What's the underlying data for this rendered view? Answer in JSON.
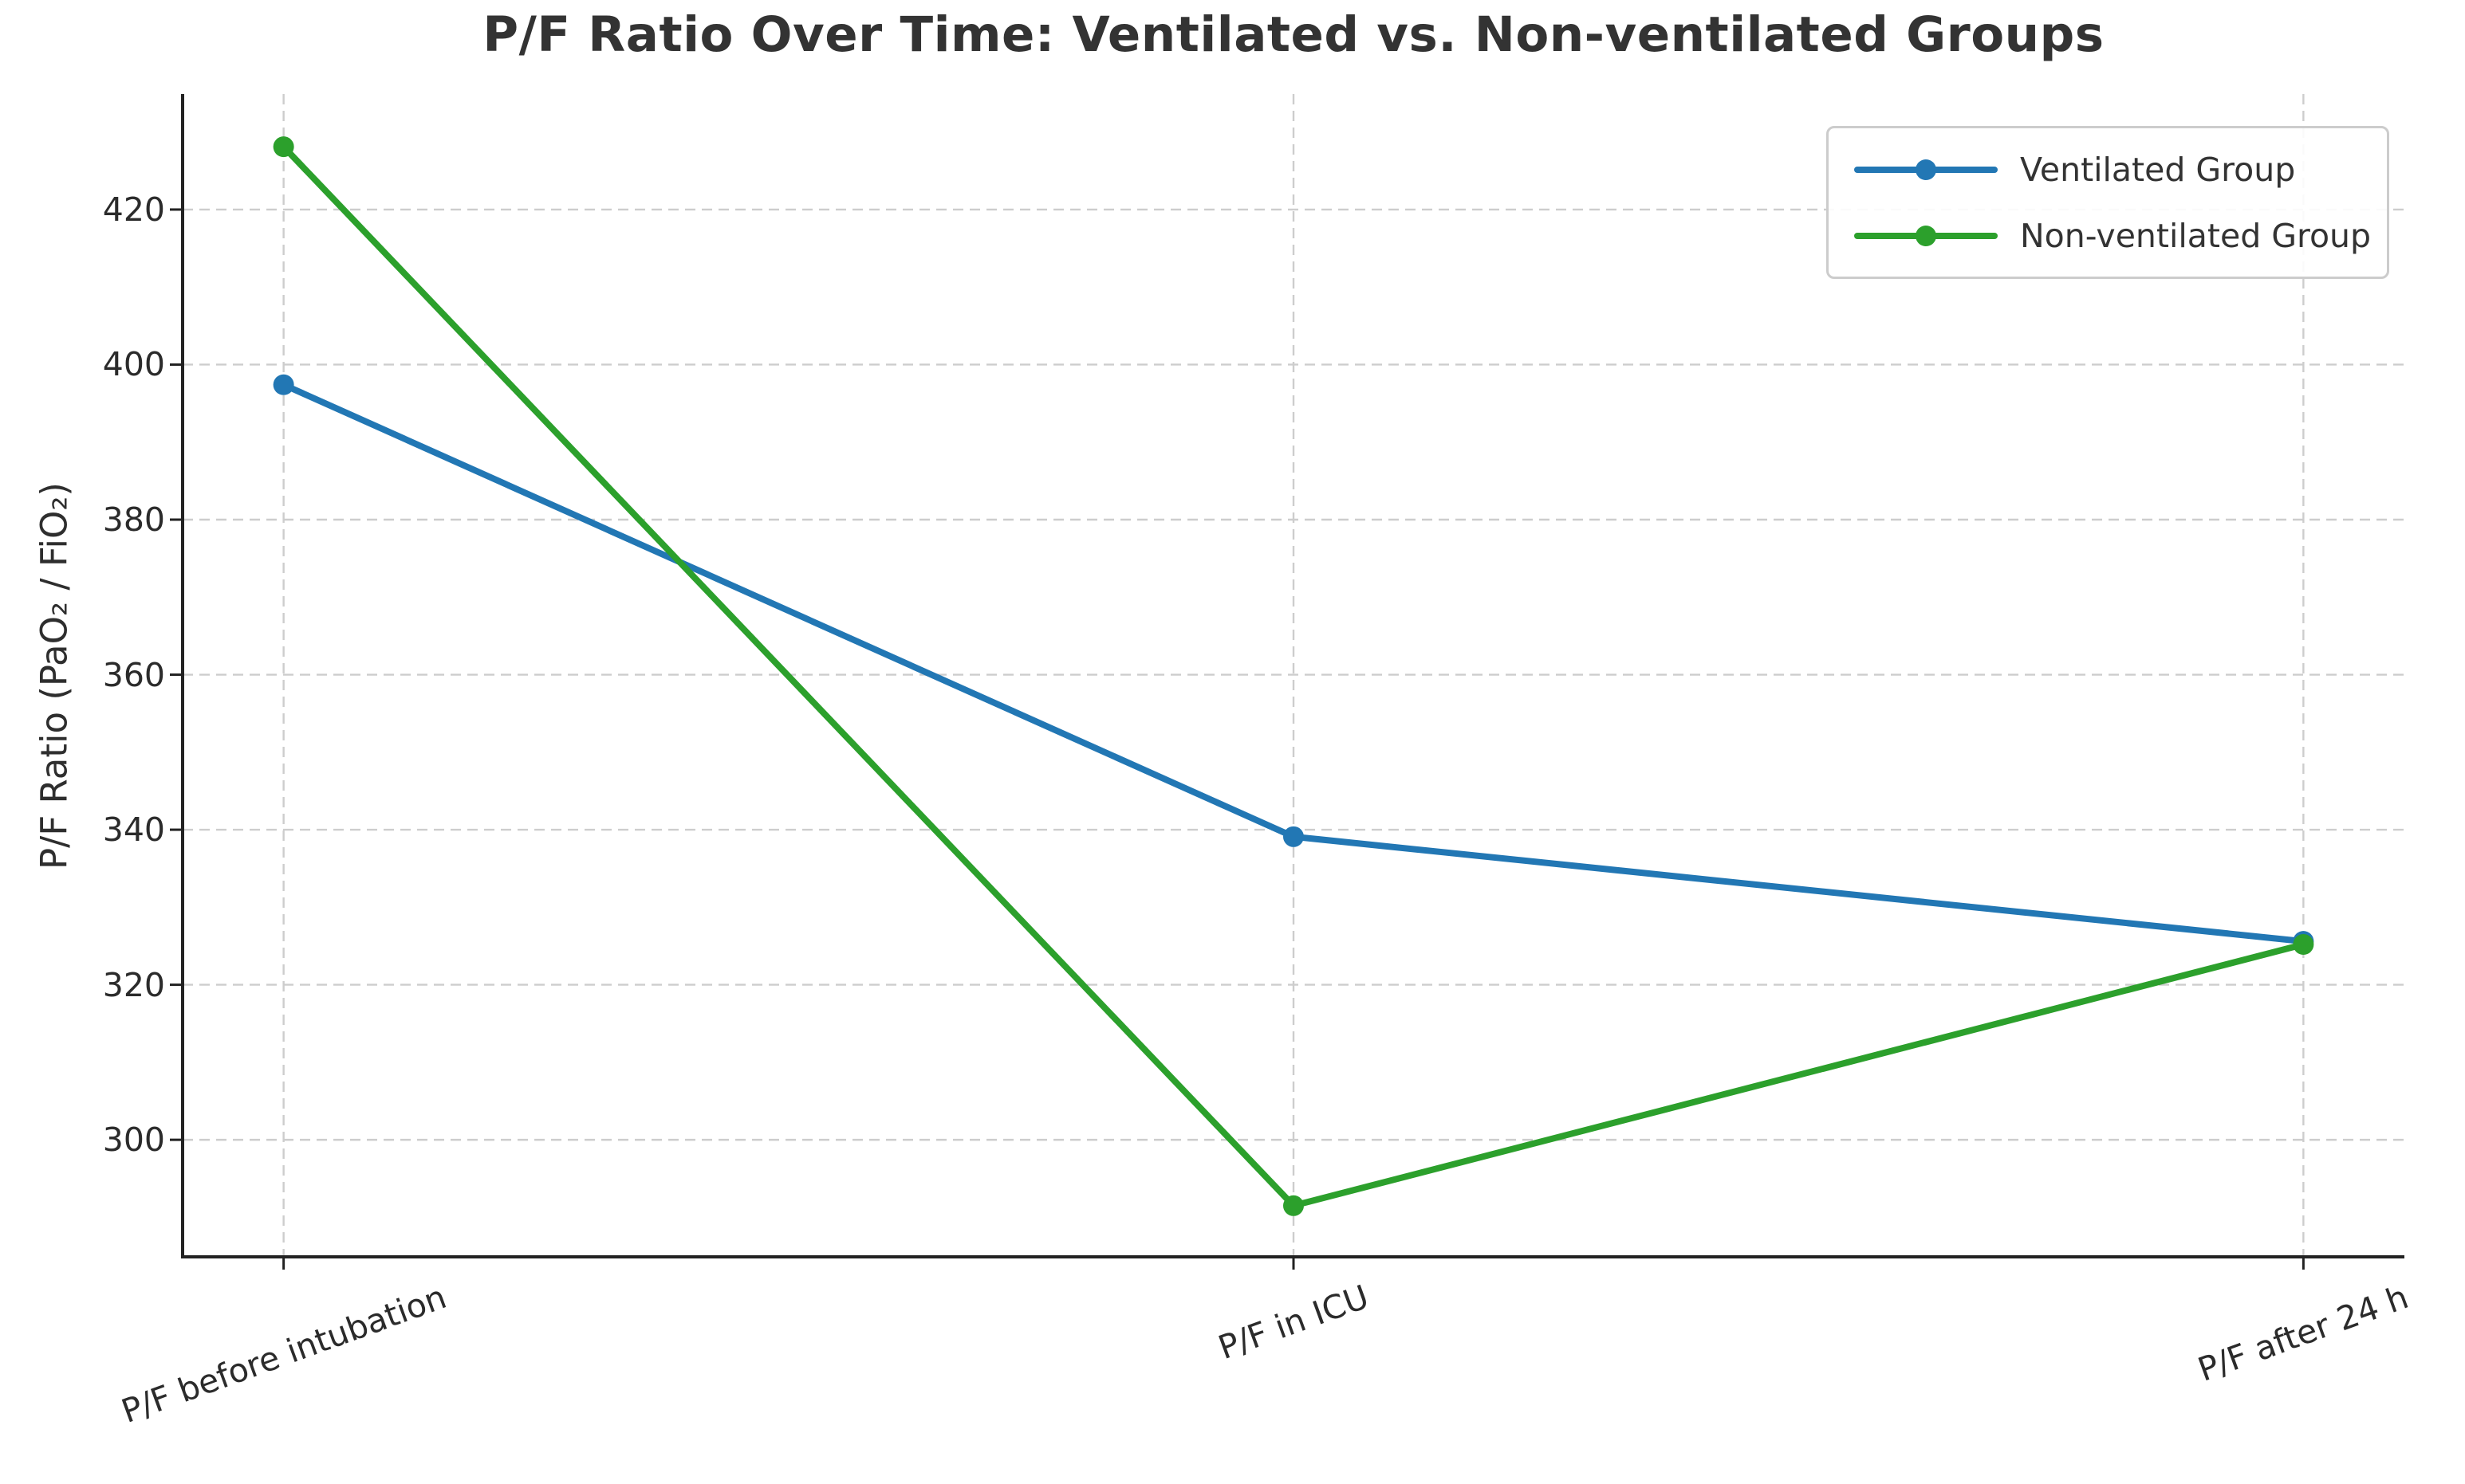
{
  "chart_data": {
    "type": "line",
    "title": "P/F Ratio Over Time: Ventilated vs. Non-ventilated Groups",
    "ylabel": "P/F Ratio (PaO₂ / FiO₂)",
    "xlabel": "",
    "categories": [
      "P/F before intubation",
      "P/F in ICU",
      "P/F after 24 h"
    ],
    "series": [
      {
        "name": "Ventilated Group",
        "color": "#2277b4",
        "values": [
          397.4,
          339.1,
          325.6
        ]
      },
      {
        "name": "Non-ventilated Group",
        "color": "#2ca02c",
        "values": [
          428.1,
          291.5,
          325.2
        ]
      }
    ],
    "yticks": [
      300,
      320,
      340,
      360,
      380,
      400,
      420
    ],
    "ylim": [
      284.9,
      434.9
    ],
    "grid": true,
    "grid_style": "dashed",
    "legend_position": "upper right",
    "x_tick_rotation_deg": 20
  }
}
